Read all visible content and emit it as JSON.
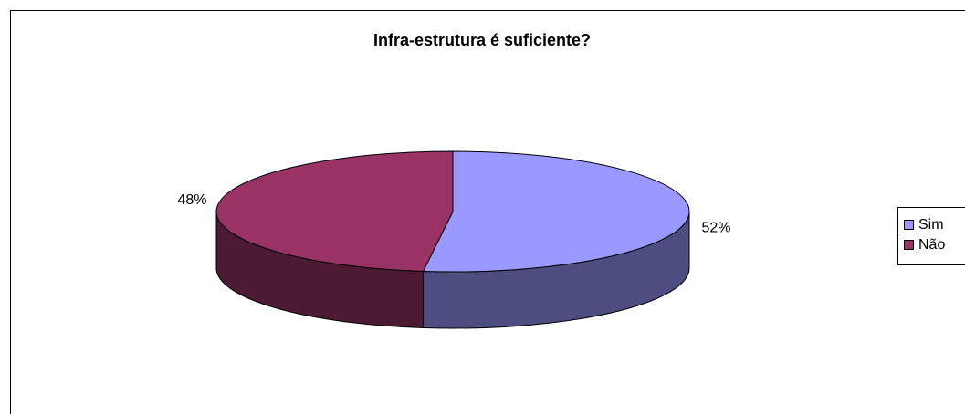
{
  "chart_data": {
    "type": "pie",
    "title": "Infra-estrutura é suficiente?",
    "categories": [
      "Sim",
      "Não"
    ],
    "values": [
      52,
      48
    ],
    "value_labels": [
      "52%",
      "48%"
    ],
    "colors": [
      "#9999ff",
      "#993366"
    ],
    "legend": "right"
  }
}
